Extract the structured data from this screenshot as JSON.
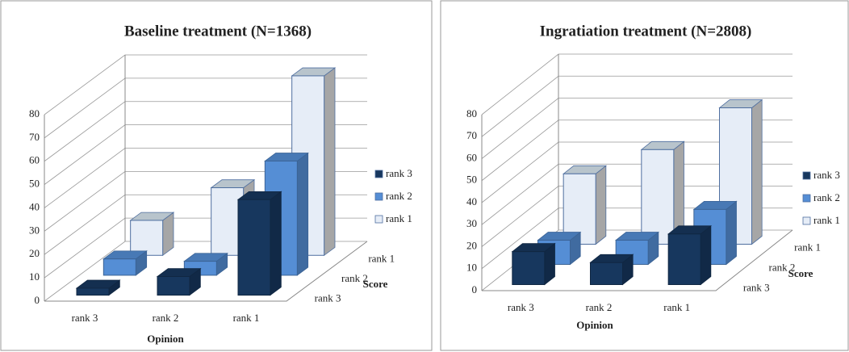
{
  "chart_data": [
    {
      "type": "bar3d",
      "title": "Baseline treatment (N=1368)",
      "xlabel": "Opinion",
      "zlabel": "Score",
      "categories": [
        "rank 3",
        "rank 2",
        "rank 1"
      ],
      "series": [
        {
          "name": "rank 3",
          "color": "#17375e",
          "values": [
            3,
            8,
            41
          ]
        },
        {
          "name": "rank 2",
          "color": "#558ed5",
          "values": [
            7,
            6,
            49
          ]
        },
        {
          "name": "rank 1",
          "color": "#e6edf7",
          "values": [
            15,
            29,
            77
          ]
        }
      ],
      "ylim": [
        0,
        80
      ],
      "yticks": [
        0,
        10,
        20,
        30,
        40,
        50,
        60,
        70,
        80
      ],
      "grid": true
    },
    {
      "type": "bar3d",
      "title": "Ingratiation treatment (N=2808)",
      "xlabel": "Opinion",
      "zlabel": "Score",
      "categories": [
        "rank 3",
        "rank 2",
        "rank 1"
      ],
      "series": [
        {
          "name": "rank 3",
          "color": "#17375e",
          "values": [
            15,
            10,
            23
          ]
        },
        {
          "name": "rank 2",
          "color": "#558ed5",
          "values": [
            11,
            11,
            25
          ]
        },
        {
          "name": "rank 1",
          "color": "#e6edf7",
          "values": [
            32,
            43,
            62
          ]
        }
      ],
      "ylim": [
        0,
        80
      ],
      "yticks": [
        0,
        10,
        20,
        30,
        40,
        50,
        60,
        70,
        80
      ],
      "grid": true
    }
  ]
}
